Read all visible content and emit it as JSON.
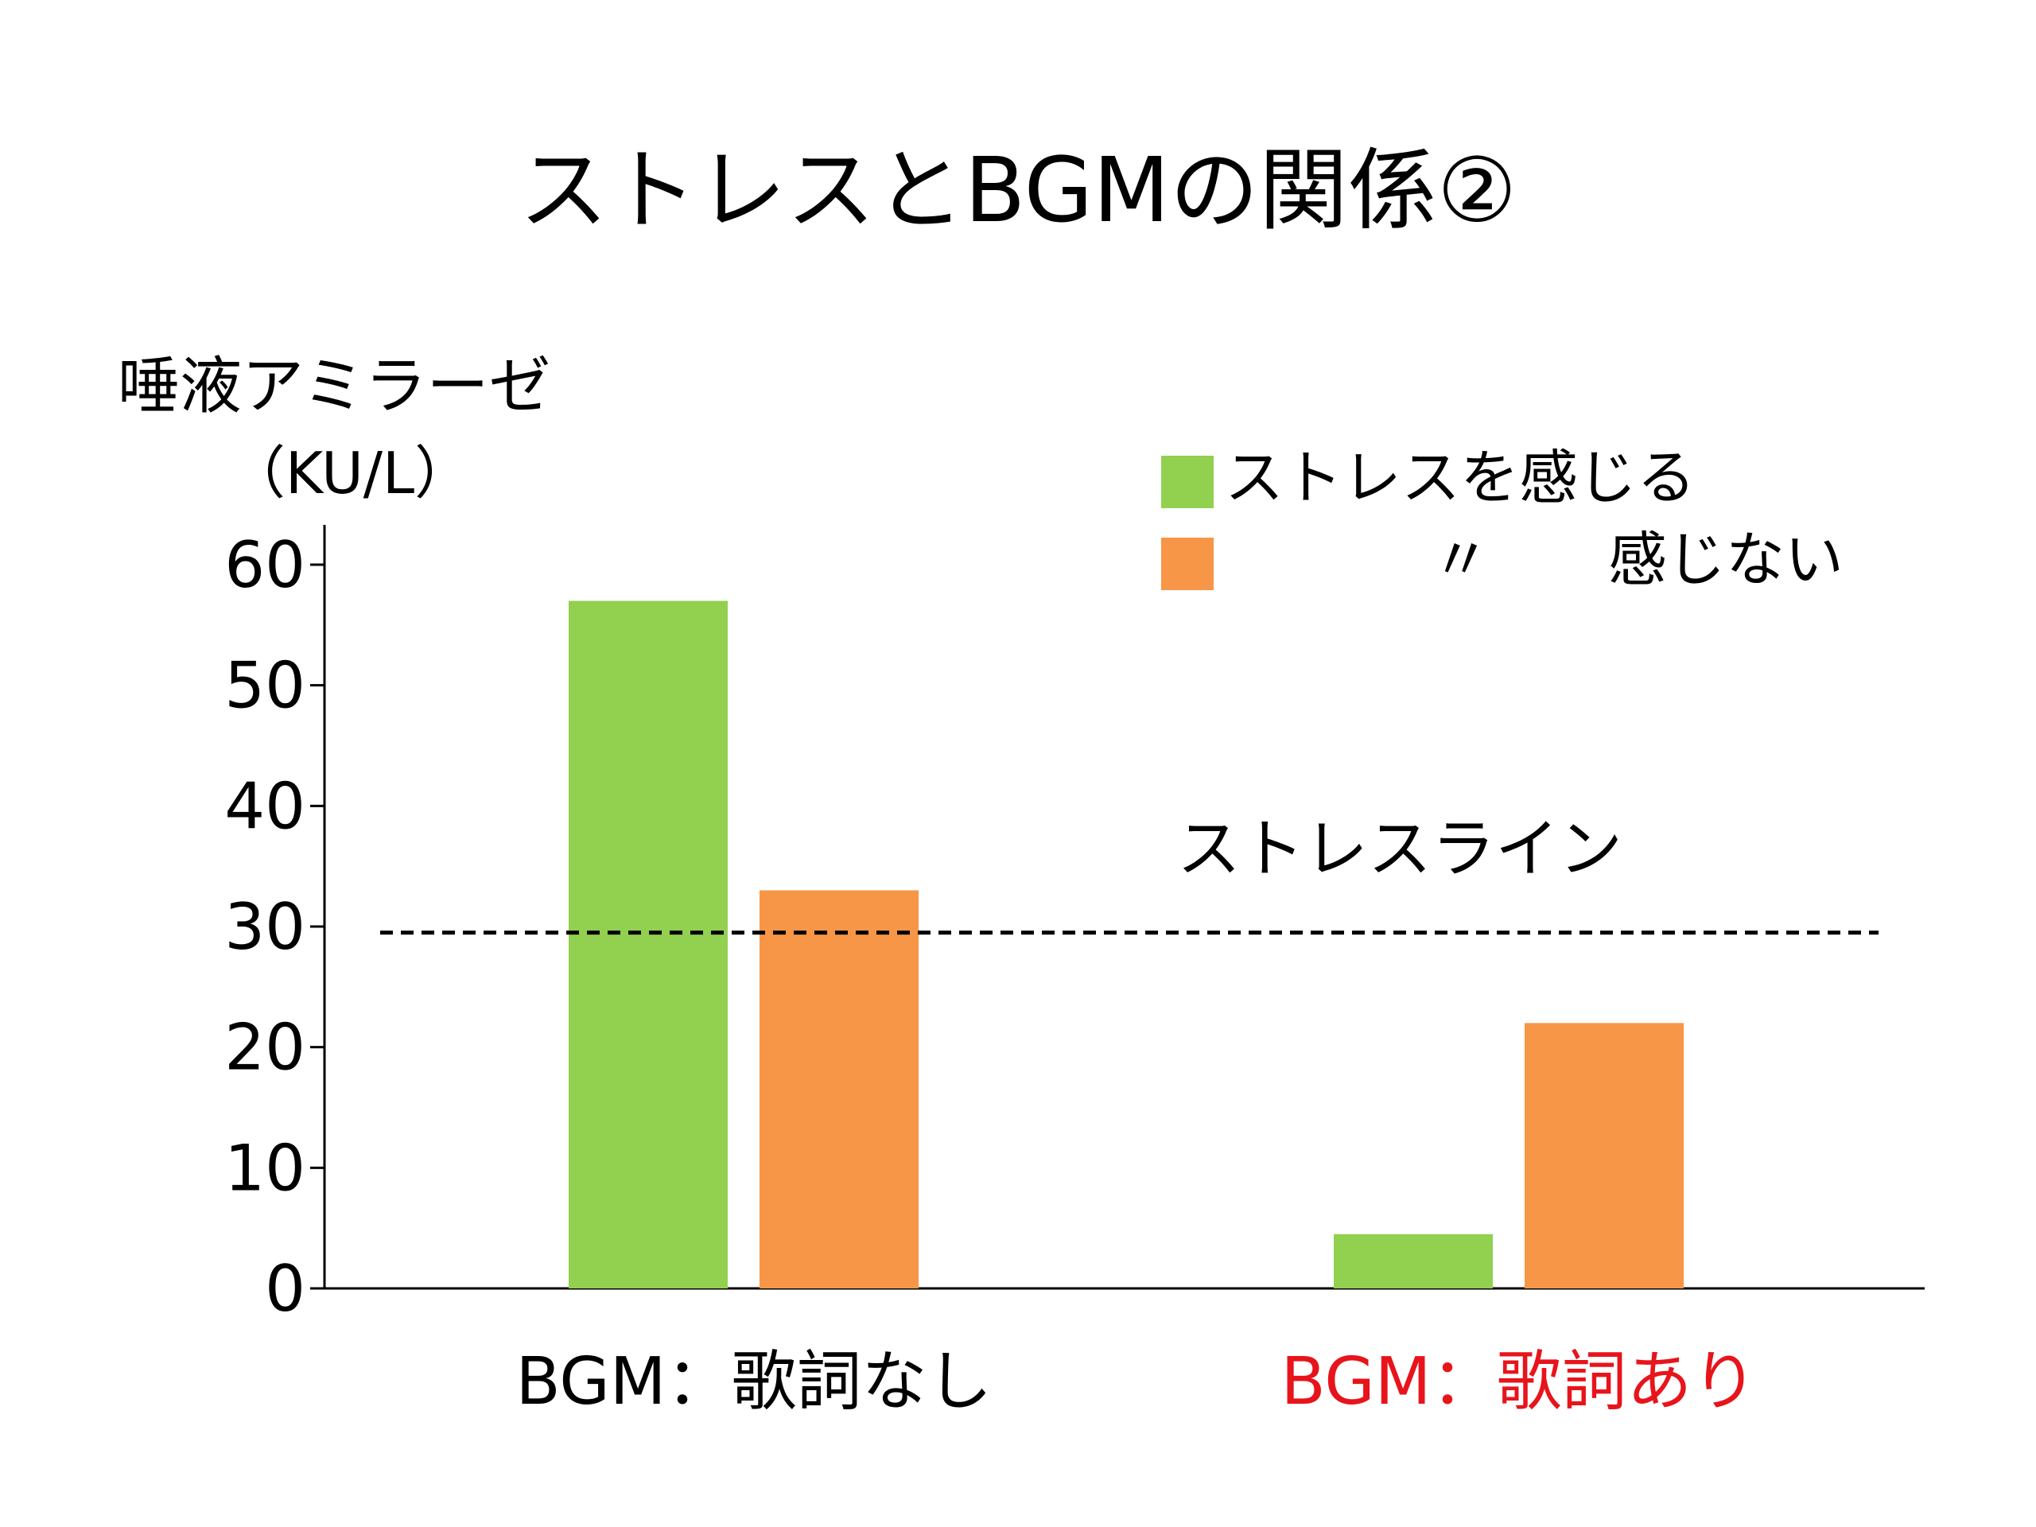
{
  "slide": {
    "title": "ストレスとBGMの関係②"
  },
  "chart_data": {
    "type": "bar",
    "ylabel": "唾液アミラーゼ",
    "yunit": "（KU/L）",
    "ylim": [
      0,
      60
    ],
    "yticks": [
      0,
      10,
      20,
      30,
      40,
      50,
      60
    ],
    "categories": [
      "BGM：歌詞なし",
      "BGM：歌詞あり"
    ],
    "category_colors": [
      "#000000",
      "#e8141b"
    ],
    "series": [
      {
        "name": "ストレスを感じる",
        "color": "#92d050",
        "values": [
          57,
          4.5
        ]
      },
      {
        "name": "〃　　感じない",
        "color": "#f79646",
        "values": [
          33,
          22
        ]
      }
    ],
    "reference_line": {
      "label": "ストレスライン",
      "value": 29.5,
      "style": "dashed"
    },
    "legend_position": "top-right",
    "grid": false
  }
}
